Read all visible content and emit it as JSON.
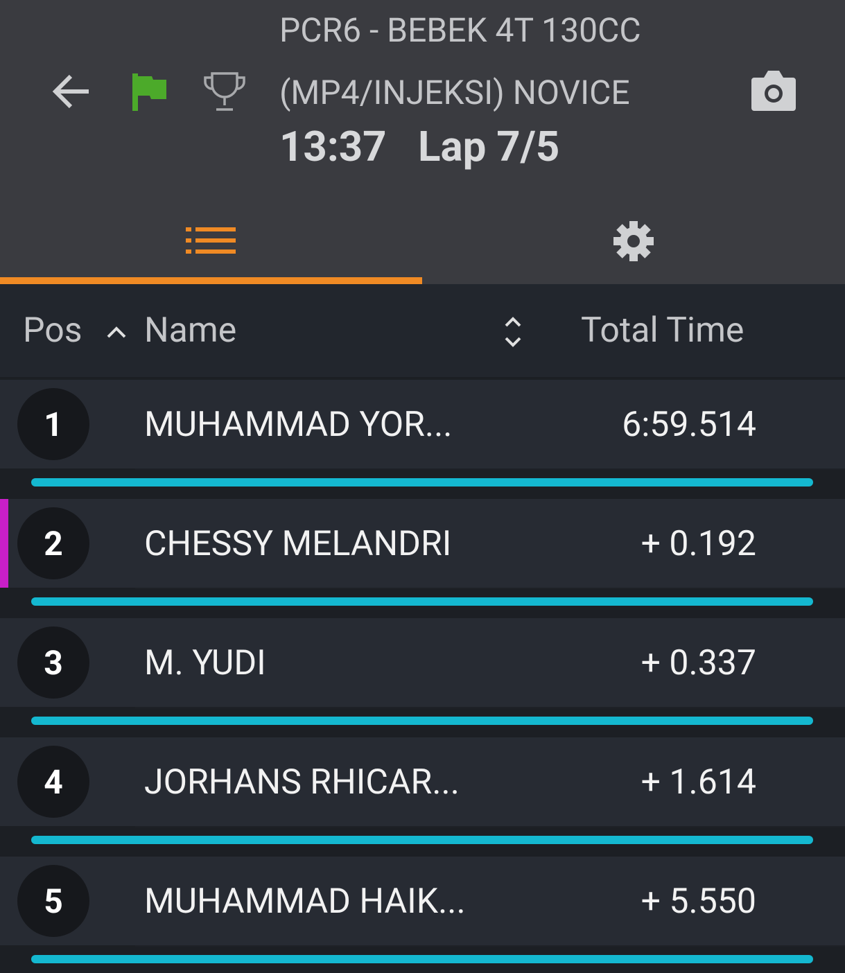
{
  "header": {
    "title_line1": "PCR6 - BEBEK 4T 130CC",
    "title_line2": "(MP4/INJEKSI) NOVICE",
    "time": "13:37",
    "lap": "Lap 7/5"
  },
  "table": {
    "columns": [
      "Pos",
      "Name",
      "Total Time"
    ],
    "rows": [
      [
        "1",
        "MUHAMMAD YOR...",
        "6:59.514"
      ],
      [
        "2",
        "CHESSY MELANDRI",
        "+ 0.192"
      ],
      [
        "3",
        "M. YUDI",
        "+ 0.337"
      ],
      [
        "4",
        "JORHANS RHICAR...",
        "+ 1.614"
      ],
      [
        "5",
        "MUHAMMAD HAIK...",
        "+ 5.550"
      ]
    ]
  }
}
